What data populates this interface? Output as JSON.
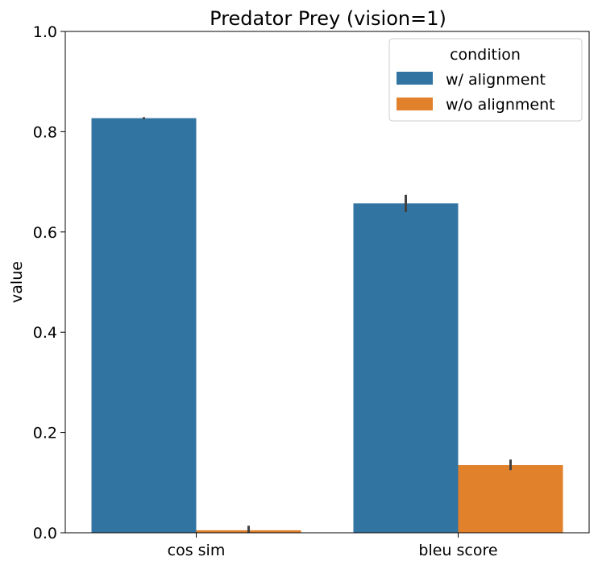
{
  "chart_data": {
    "type": "bar",
    "title": "Predator Prey (vision=1)",
    "xlabel": "",
    "ylabel": "value",
    "categories": [
      "cos sim",
      "bleu score"
    ],
    "ylim": [
      0,
      1.0
    ],
    "yticks": [
      "0.0",
      "0.2",
      "0.4",
      "0.6",
      "0.8",
      "1.0"
    ],
    "grid": false,
    "legend": {
      "title": "condition",
      "placement": "top-right"
    },
    "series": [
      {
        "name": "w/ alignment",
        "color": "#3274a1",
        "values": [
          0.827,
          0.657
        ],
        "error_low": [
          0.825,
          0.64
        ],
        "error_high": [
          0.829,
          0.674
        ]
      },
      {
        "name": "w/o alignment",
        "color": "#e1812c",
        "values": [
          0.005,
          0.135
        ],
        "error_low": [
          0.0,
          0.125
        ],
        "error_high": [
          0.014,
          0.146
        ]
      }
    ]
  }
}
